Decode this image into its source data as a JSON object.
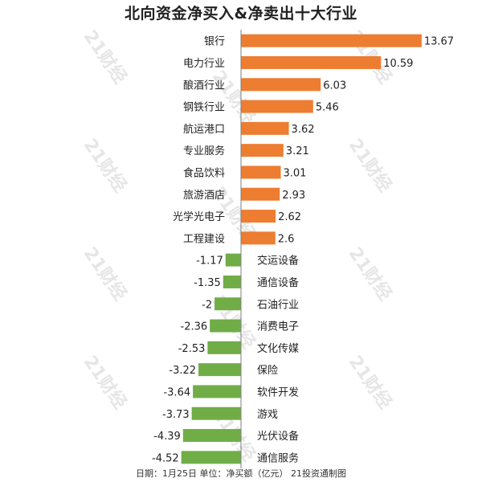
{
  "title": "北向资金净买入&净卖出十大行业",
  "footer": "日期：1月25日 单位：净买额（亿元） 21投资通制图",
  "watermark_text": "21财经",
  "colors": {
    "positive": "#ed7d31",
    "negative": "#70ad47",
    "axis": "#7f7f7f",
    "text": "#222222"
  },
  "chart_data": {
    "type": "bar",
    "orientation": "horizontal",
    "title": "北向资金净买入&净卖出十大行业",
    "categories": [
      "银行",
      "电力行业",
      "酿酒行业",
      "钢铁行业",
      "航运港口",
      "专业服务",
      "食品饮料",
      "旅游酒店",
      "光学光电子",
      "工程建设",
      "交运设备",
      "通信设备",
      "石油行业",
      "消费电子",
      "文化传媒",
      "保险",
      "软件开发",
      "游戏",
      "光伏设备",
      "通信服务"
    ],
    "values": [
      13.67,
      10.59,
      6.03,
      5.46,
      3.62,
      3.21,
      3.01,
      2.93,
      2.62,
      2.6,
      -1.17,
      -1.35,
      -2,
      -2.36,
      -2.53,
      -3.22,
      -3.64,
      -3.73,
      -4.39,
      -4.52
    ],
    "value_labels": [
      "13.67",
      "10.59",
      "6.03",
      "5.46",
      "3.62",
      "3.21",
      "3.01",
      "2.93",
      "2.62",
      "2.6",
      "-1.17",
      "-1.35",
      "-2",
      "-2.36",
      "-2.53",
      "-3.22",
      "-3.64",
      "-3.73",
      "-4.39",
      "-4.52"
    ],
    "unit": "净买额（亿元）",
    "grid": false,
    "legend": "none",
    "xlim": [
      -5.2,
      14.8
    ]
  }
}
